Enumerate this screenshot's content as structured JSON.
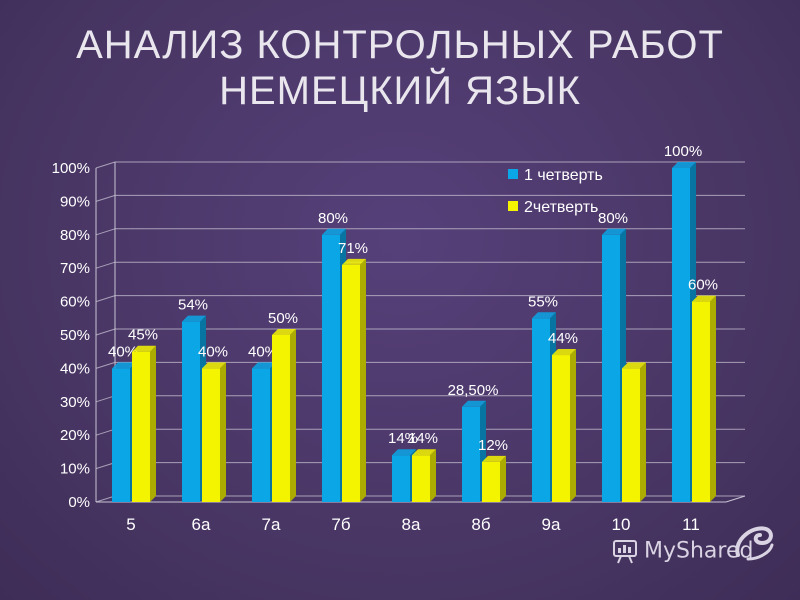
{
  "title": {
    "line1": "АНАЛИЗ КОНТРОЛЬНЫХ РАБОТ",
    "line2": "НЕМЕЦКИЙ ЯЗЫК"
  },
  "watermark": {
    "text": "MyShared",
    "icon": "presentation-board-icon"
  },
  "colors": {
    "background": "#4a3766",
    "series1": "#0aa6e6",
    "series2": "#f4f400",
    "grid": "#c9c4d4",
    "text": "#ffffff"
  },
  "chart_data": {
    "type": "bar",
    "title": "",
    "xlabel": "",
    "ylabel": "",
    "ylim": [
      0,
      100
    ],
    "yticks": [
      "0%",
      "10%",
      "20%",
      "30%",
      "40%",
      "50%",
      "60%",
      "70%",
      "80%",
      "90%",
      "100%"
    ],
    "grid": true,
    "legend_position": "top-right",
    "categories": [
      "5",
      "6а",
      "7а",
      "7б",
      "8а",
      "8б",
      "9а",
      "10",
      "11"
    ],
    "series": [
      {
        "name": "1 четверть",
        "values": [
          40,
          54,
          40,
          80,
          14,
          28.5,
          55,
          80,
          100
        ],
        "labels": [
          "40%",
          "54%",
          "40%",
          "80%",
          "14%",
          "28,50%",
          "55%",
          "80%",
          "100%"
        ]
      },
      {
        "name": "2четверть",
        "values": [
          45,
          40,
          50,
          71,
          14,
          12,
          44,
          40,
          60
        ],
        "labels": [
          "45%",
          "40%",
          "50%",
          "71%",
          "14%",
          "12%",
          "44%",
          "",
          "60%"
        ]
      }
    ]
  }
}
